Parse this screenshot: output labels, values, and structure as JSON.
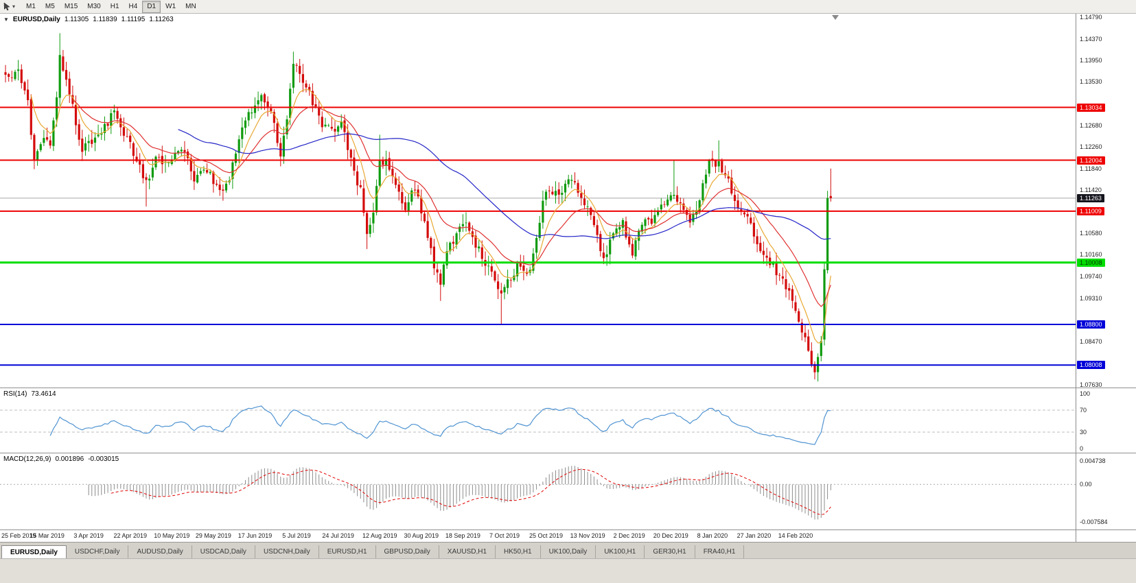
{
  "toolbar": {
    "timeframes": [
      "M1",
      "M5",
      "M15",
      "M30",
      "H1",
      "H4",
      "D1",
      "W1",
      "MN"
    ],
    "active_timeframe": "D1"
  },
  "chart_header": {
    "symbol": "EURUSD,Daily",
    "open": "1.11305",
    "high": "1.11839",
    "low": "1.11195",
    "close": "1.11263"
  },
  "colors": {
    "bull": "#0f9b0f",
    "bear": "#d40b0b",
    "ma_fast": "#e8a832",
    "ma_mid": "#e03030",
    "ma_slow": "#2424c8",
    "rsi_line": "#4f93d2",
    "macd_bar": "#8c8c8c",
    "macd_signal": "#e00000",
    "current_price_line": "#a8a8a8",
    "level_dash": "#bcbcbc"
  },
  "price_axis": {
    "ticks": [
      {
        "label": "1.14790",
        "value": 1.1479
      },
      {
        "label": "1.14370",
        "value": 1.1437
      },
      {
        "label": "1.13950",
        "value": 1.1395
      },
      {
        "label": "1.13530",
        "value": 1.1353
      },
      {
        "label": "1.12680",
        "value": 1.1268
      },
      {
        "label": "1.12260",
        "value": 1.1226
      },
      {
        "label": "1.11840",
        "value": 1.1184
      },
      {
        "label": "1.11420",
        "value": 1.1142
      },
      {
        "label": "1.10580",
        "value": 1.1058
      },
      {
        "label": "1.10160",
        "value": 1.1016
      },
      {
        "label": "1.09740",
        "value": 1.0974
      },
      {
        "label": "1.09310",
        "value": 1.0931
      },
      {
        "label": "1.08470",
        "value": 1.0847
      },
      {
        "label": "1.07630",
        "value": 1.0763
      }
    ],
    "badges": [
      {
        "label": "1.13034",
        "value": 1.13034,
        "bg": "#ee0000",
        "fg": "#ffffff"
      },
      {
        "label": "1.12004",
        "value": 1.12004,
        "bg": "#ee0000",
        "fg": "#ffffff"
      },
      {
        "label": "1.11263",
        "value": 1.11263,
        "bg": "#15151e",
        "fg": "#ffffff"
      },
      {
        "label": "1.11009",
        "value": 1.11009,
        "bg": "#ee0000",
        "fg": "#ffffff"
      },
      {
        "label": "1.10008",
        "value": 1.10008,
        "bg": "#00dd00",
        "fg": "#003300"
      },
      {
        "label": "1.08800",
        "value": 1.088,
        "bg": "#0000d8",
        "fg": "#ffffff"
      },
      {
        "label": "1.08008",
        "value": 1.08008,
        "bg": "#0000d8",
        "fg": "#ffffff"
      }
    ]
  },
  "chart_data": {
    "type": "candlestick",
    "symbol": "EURUSD",
    "timeframe": "Daily",
    "count": 259,
    "candles_per_label": 13,
    "price_range": {
      "max": 1.1486,
      "min": 1.0757
    },
    "current_price": 1.11263,
    "last_candle": {
      "o": 1.11305,
      "h": 1.11839,
      "l": 1.11195,
      "c": 1.11263
    },
    "close_anchors": [
      [
        0,
        1.1358
      ],
      [
        4,
        1.1368
      ],
      [
        7,
        1.131
      ],
      [
        9,
        1.1195
      ],
      [
        11,
        1.1242
      ],
      [
        14,
        1.1228
      ],
      [
        16,
        1.133
      ],
      [
        17,
        1.1415
      ],
      [
        19,
        1.1352
      ],
      [
        24,
        1.1222
      ],
      [
        29,
        1.1256
      ],
      [
        34,
        1.1292
      ],
      [
        39,
        1.1232
      ],
      [
        44,
        1.1152
      ],
      [
        47,
        1.1215
      ],
      [
        51,
        1.1186
      ],
      [
        55,
        1.1224
      ],
      [
        59,
        1.1166
      ],
      [
        63,
        1.1184
      ],
      [
        67,
        1.1132
      ],
      [
        70,
        1.117
      ],
      [
        74,
        1.1256
      ],
      [
        77,
        1.1298
      ],
      [
        80,
        1.1332
      ],
      [
        83,
        1.1288
      ],
      [
        86,
        1.1216
      ],
      [
        88,
        1.129
      ],
      [
        90,
        1.1388
      ],
      [
        92,
        1.1368
      ],
      [
        95,
        1.1328
      ],
      [
        98,
        1.1282
      ],
      [
        102,
        1.1252
      ],
      [
        105,
        1.1278
      ],
      [
        108,
        1.1202
      ],
      [
        111,
        1.1138
      ],
      [
        113,
        1.1062
      ],
      [
        115,
        1.1088
      ],
      [
        117,
        1.1208
      ],
      [
        121,
        1.1178
      ],
      [
        125,
        1.1102
      ],
      [
        128,
        1.1146
      ],
      [
        131,
        1.1082
      ],
      [
        134,
        1.0998
      ],
      [
        136,
        1.0968
      ],
      [
        139,
        1.1036
      ],
      [
        142,
        1.1066
      ],
      [
        145,
        1.1072
      ],
      [
        148,
        1.1022
      ],
      [
        151,
        1.0992
      ],
      [
        155,
        1.0938
      ],
      [
        157,
        1.0962
      ],
      [
        160,
        1.0992
      ],
      [
        163,
        1.0972
      ],
      [
        166,
        1.1042
      ],
      [
        169,
        1.1148
      ],
      [
        172,
        1.1132
      ],
      [
        175,
        1.1152
      ],
      [
        178,
        1.1162
      ],
      [
        181,
        1.1116
      ],
      [
        184,
        1.1072
      ],
      [
        187,
        1.1012
      ],
      [
        190,
        1.1052
      ],
      [
        193,
        1.1076
      ],
      [
        196,
        1.1022
      ],
      [
        199,
        1.1082
      ],
      [
        202,
        1.1078
      ],
      [
        205,
        1.1112
      ],
      [
        208,
        1.1132
      ],
      [
        211,
        1.1116
      ],
      [
        214,
        1.1072
      ],
      [
        217,
        1.1122
      ],
      [
        220,
        1.1208
      ],
      [
        223,
        1.1192
      ],
      [
        226,
        1.1162
      ],
      [
        229,
        1.1112
      ],
      [
        232,
        1.1096
      ],
      [
        235,
        1.1026
      ],
      [
        238,
        1.1002
      ],
      [
        241,
        1.0986
      ],
      [
        244,
        1.0952
      ],
      [
        247,
        1.0916
      ],
      [
        250,
        1.0846
      ],
      [
        253,
        1.0792
      ],
      [
        254,
        1.0812
      ],
      [
        255,
        1.0858
      ],
      [
        256,
        1.0988
      ],
      [
        257,
        1.1132
      ],
      [
        258,
        1.11263
      ]
    ],
    "spike_overrides": [
      {
        "i": 17,
        "h": 1.1448
      },
      {
        "i": 44,
        "l": 1.111
      },
      {
        "i": 90,
        "h": 1.1412
      },
      {
        "i": 113,
        "l": 1.1027
      },
      {
        "i": 117,
        "h": 1.125
      },
      {
        "i": 136,
        "l": 1.0926
      },
      {
        "i": 155,
        "l": 1.0879
      },
      {
        "i": 209,
        "h": 1.12
      },
      {
        "i": 223,
        "h": 1.1239
      },
      {
        "i": 253,
        "l": 1.0778
      }
    ],
    "hlines": [
      {
        "value": 1.13034,
        "color": "#ee0000",
        "width": 2
      },
      {
        "value": 1.12004,
        "color": "#ee0000",
        "width": 2
      },
      {
        "value": 1.11009,
        "color": "#ee0000",
        "width": 2
      },
      {
        "value": 1.10008,
        "color": "#00dd00",
        "width": 3
      },
      {
        "value": 1.088,
        "color": "#0000d8",
        "width": 2
      },
      {
        "value": 1.08008,
        "color": "#0000d8",
        "width": 2
      }
    ],
    "moving_averages": [
      {
        "period": 8,
        "type": "ema",
        "color_key": "ma_fast"
      },
      {
        "period": 21,
        "type": "ema",
        "color_key": "ma_mid"
      },
      {
        "period": 55,
        "type": "sma",
        "color_key": "ma_slow"
      }
    ],
    "x_labels": [
      "25 Feb 2019",
      "15 Mar 2019",
      "3 Apr 2019",
      "22 Apr 2019",
      "10 May 2019",
      "29 May 2019",
      "17 Jun 2019",
      "5 Jul 2019",
      "24 Jul 2019",
      "12 Aug 2019",
      "30 Aug 2019",
      "18 Sep 2019",
      "7 Oct 2019",
      "25 Oct 2019",
      "13 Nov 2019",
      "2 Dec 2019",
      "20 Dec 2019",
      "8 Jan 2020",
      "27 Jan 2020",
      "14 Feb 2020"
    ]
  },
  "rsi_panel": {
    "name": "RSI(14)",
    "value": "73.4614",
    "period": 14,
    "levels": [
      {
        "label": "100",
        "value": 100
      },
      {
        "label": "70",
        "value": 70
      },
      {
        "label": "30",
        "value": 30
      },
      {
        "label": "0",
        "value": 0
      }
    ]
  },
  "macd_panel": {
    "name": "MACD(12,26,9)",
    "value_main": "0.001896",
    "value_signal": "-0.003015",
    "range": {
      "max": 0.0052,
      "min": -0.0082
    },
    "levels": [
      {
        "label": "0.004738",
        "value": 0.004738
      },
      {
        "label": "0.00",
        "value": 0
      },
      {
        "label": "-0.007584",
        "value": -0.007584
      }
    ]
  },
  "tabs": {
    "active": "EURUSD,Daily",
    "items": [
      "EURUSD,Daily",
      "USDCHF,Daily",
      "AUDUSD,Daily",
      "USDCAD,Daily",
      "USDCNH,Daily",
      "EURUSD,H1",
      "GBPUSD,Daily",
      "XAUUSD,H1",
      "HK50,H1",
      "UK100,Daily",
      "UK100,H1",
      "GER30,H1",
      "FRA40,H1"
    ]
  }
}
